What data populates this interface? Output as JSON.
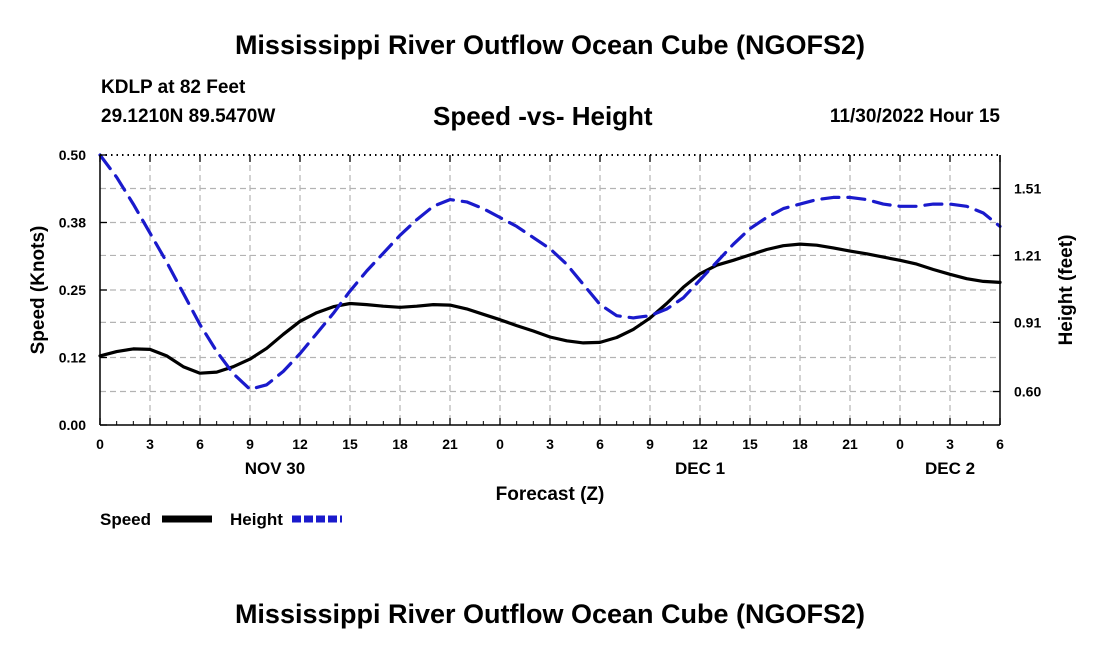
{
  "title": "Mississippi River Outflow Ocean Cube (NGOFS2)",
  "footer_title": "Mississippi River Outflow Ocean Cube (NGOFS2)",
  "station": "KDLP at 82 Feet",
  "coordinates": "29.1210N  89.5470W",
  "subtitle": "Speed -vs- Height",
  "datetime": "11/30/2022 Hour 15",
  "colors": {
    "speed": "#000000",
    "height": "#1a1acc",
    "grid": "#b3b3b3"
  },
  "chart_data": {
    "type": "line",
    "title": "Speed -vs- Height",
    "xlabel": "Forecast (Z)",
    "ylabel": "Speed (Knots)",
    "y2label": "Height (feet)",
    "x_range_hours": [
      0,
      54
    ],
    "x_tick_hours": [
      0,
      3,
      6,
      9,
      12,
      15,
      18,
      21,
      24,
      27,
      30,
      33,
      36,
      39,
      42,
      45,
      48,
      51,
      54
    ],
    "x_tick_labels": [
      "0",
      "3",
      "6",
      "9",
      "12",
      "15",
      "18",
      "21",
      "0",
      "3",
      "6",
      "9",
      "12",
      "15",
      "18",
      "21",
      "0",
      "3",
      "6"
    ],
    "date_labels": [
      {
        "hour": 10.5,
        "label": "NOV 30"
      },
      {
        "hour": 36,
        "label": "DEC 1"
      },
      {
        "hour": 51,
        "label": "DEC 2"
      }
    ],
    "ylim": [
      0,
      0.5
    ],
    "y_ticks": [
      0,
      0.125,
      0.25,
      0.375,
      0.5
    ],
    "y_tick_labels": [
      "0.00",
      "0.12",
      "0.25",
      "0.38",
      "0.50"
    ],
    "y2lim": [
      0.45,
      1.66
    ],
    "y2_ticks": [
      0.6,
      0.91,
      1.21,
      1.51
    ],
    "y2_tick_labels": [
      "0.60",
      "0.91",
      "1.21",
      "1.51"
    ],
    "grid": true,
    "legend": "bottom-left",
    "series": [
      {
        "name": "Speed",
        "axis": "left",
        "style": "solid",
        "x": [
          0,
          1,
          2,
          3,
          4,
          5,
          6,
          7,
          8,
          9,
          10,
          11,
          12,
          13,
          14,
          15,
          16,
          17,
          18,
          19,
          20,
          21,
          22,
          23,
          24,
          25,
          26,
          27,
          28,
          29,
          30,
          31,
          32,
          33,
          34,
          35,
          36,
          37,
          38,
          39,
          40,
          41,
          42,
          43,
          44,
          45,
          46,
          47,
          48,
          49,
          50,
          51,
          52,
          53,
          54
        ],
        "values": [
          0.128,
          0.136,
          0.141,
          0.14,
          0.128,
          0.108,
          0.096,
          0.098,
          0.108,
          0.122,
          0.142,
          0.168,
          0.192,
          0.208,
          0.219,
          0.225,
          0.223,
          0.22,
          0.218,
          0.22,
          0.223,
          0.222,
          0.215,
          0.205,
          0.195,
          0.184,
          0.174,
          0.163,
          0.156,
          0.152,
          0.153,
          0.162,
          0.177,
          0.198,
          0.225,
          0.255,
          0.28,
          0.296,
          0.305,
          0.315,
          0.325,
          0.332,
          0.335,
          0.333,
          0.328,
          0.322,
          0.317,
          0.311,
          0.305,
          0.298,
          0.288,
          0.279,
          0.271,
          0.266,
          0.264
        ]
      },
      {
        "name": "Height",
        "axis": "right",
        "style": "dashed",
        "x": [
          0,
          1,
          2,
          3,
          4,
          5,
          6,
          7,
          8,
          9,
          10,
          11,
          12,
          13,
          14,
          15,
          16,
          17,
          18,
          19,
          20,
          21,
          22,
          23,
          24,
          25,
          26,
          27,
          28,
          29,
          30,
          31,
          32,
          33,
          34,
          35,
          36,
          37,
          38,
          39,
          40,
          41,
          42,
          43,
          44,
          45,
          46,
          47,
          48,
          49,
          50,
          51,
          52,
          53,
          54
        ],
        "values": [
          1.66,
          1.56,
          1.44,
          1.31,
          1.18,
          1.04,
          0.9,
          0.78,
          0.68,
          0.61,
          0.63,
          0.69,
          0.77,
          0.86,
          0.95,
          1.05,
          1.14,
          1.22,
          1.3,
          1.37,
          1.43,
          1.46,
          1.45,
          1.42,
          1.38,
          1.34,
          1.29,
          1.24,
          1.17,
          1.08,
          0.99,
          0.94,
          0.93,
          0.94,
          0.97,
          1.02,
          1.1,
          1.18,
          1.26,
          1.33,
          1.38,
          1.42,
          1.44,
          1.46,
          1.47,
          1.47,
          1.46,
          1.44,
          1.43,
          1.43,
          1.44,
          1.44,
          1.43,
          1.4,
          1.34
        ]
      }
    ]
  },
  "legend_items": [
    {
      "label": "Speed"
    },
    {
      "label": "Height"
    }
  ]
}
